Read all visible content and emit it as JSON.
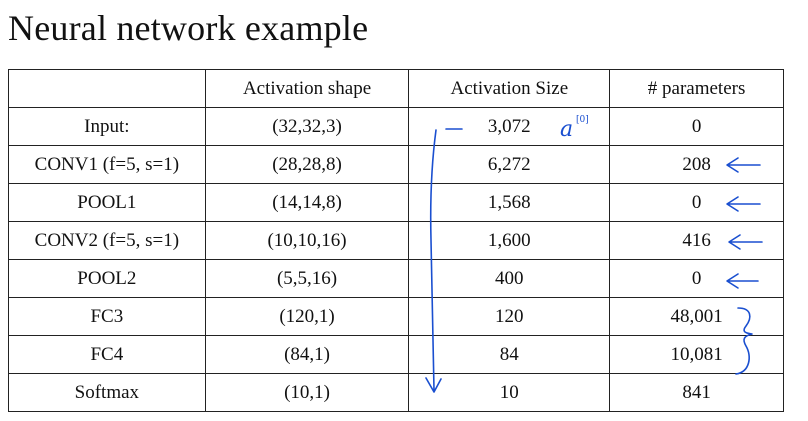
{
  "title": "Neural network example",
  "columns": [
    "",
    "Activation shape",
    "Activation Size",
    "# parameters"
  ],
  "rows": [
    {
      "layer": "Input:",
      "shape": "(32,32,3)",
      "size": "3,072",
      "params": "0"
    },
    {
      "layer": "CONV1 (f=5, s=1)",
      "shape": "(28,28,8)",
      "size": "6,272",
      "params": "208"
    },
    {
      "layer": "POOL1",
      "shape": "(14,14,8)",
      "size": "1,568",
      "params": "0"
    },
    {
      "layer": "CONV2  (f=5, s=1)",
      "shape": "(10,10,16)",
      "size": "1,600",
      "params": "416"
    },
    {
      "layer": "POOL2",
      "shape": "(5,5,16)",
      "size": "400",
      "params": "0"
    },
    {
      "layer": "FC3",
      "shape": "(120,1)",
      "size": "120",
      "params": "48,001"
    },
    {
      "layer": "FC4",
      "shape": "(84,1)",
      "size": "84",
      "params": "10,081"
    },
    {
      "layer": "Softmax",
      "shape": "(10,1)",
      "size": "10",
      "params": "841"
    }
  ],
  "annotations": {
    "input_label": "a",
    "input_superscript": "[0]",
    "ink_color": "#1a4fd0"
  }
}
